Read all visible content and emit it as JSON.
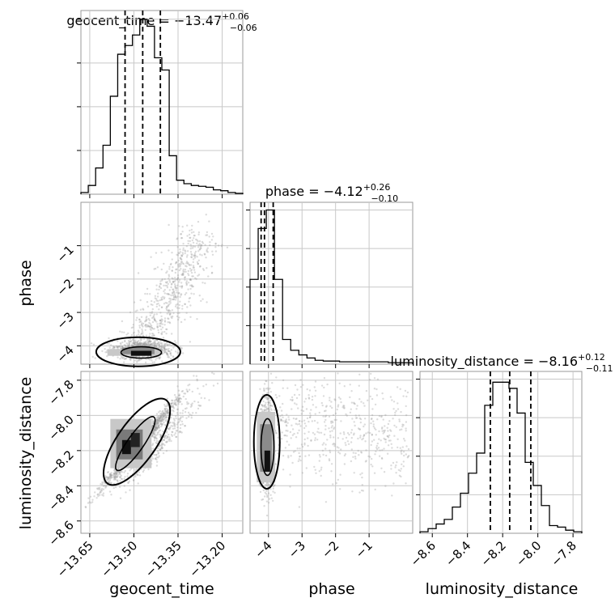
{
  "chart_data": {
    "type": "corner",
    "parameters": [
      "geocent_time",
      "phase",
      "luminosity_distance"
    ],
    "grid": true,
    "diagonal": [
      {
        "parameter": "geocent_time",
        "title": {
          "name": "geocent_time",
          "median": "−13.47",
          "plus": "+0.06",
          "minus": "−0.06"
        },
        "range": [
          -13.68,
          -13.13
        ],
        "quantiles": [
          -13.53,
          -13.47,
          -13.41
        ],
        "bin_heights": [
          0.01,
          0.05,
          0.15,
          0.28,
          0.56,
          0.8,
          0.85,
          0.91,
          1.0,
          0.96,
          0.78,
          0.71,
          0.22,
          0.08,
          0.06,
          0.05,
          0.045,
          0.04,
          0.025,
          0.02,
          0.01,
          0.005
        ]
      },
      {
        "parameter": "phase",
        "title": {
          "name": "phase",
          "median": "−4.12",
          "plus": "+0.26",
          "minus": "−0.10"
        },
        "range": [
          -4.55,
          0.3
        ],
        "quantiles": [
          -4.22,
          -4.12,
          -3.86
        ],
        "bin_heights": [
          0.55,
          0.88,
          1.0,
          0.55,
          0.16,
          0.09,
          0.06,
          0.04,
          0.025,
          0.02,
          0.02,
          0.015,
          0.015,
          0.015,
          0.015,
          0.015,
          0.015,
          0.01,
          0.01,
          0.01
        ]
      },
      {
        "parameter": "luminosity_distance",
        "title": {
          "name": "luminosity_distance",
          "median": "−8.16",
          "plus": "+0.12",
          "minus": "−0.11"
        },
        "range": [
          -8.67,
          -7.75
        ],
        "quantiles": [
          -8.27,
          -8.16,
          -8.04
        ],
        "bin_heights": [
          0.01,
          0.03,
          0.06,
          0.09,
          0.17,
          0.26,
          0.39,
          0.52,
          0.83,
          0.98,
          0.98,
          0.94,
          0.78,
          0.46,
          0.31,
          0.18,
          0.05,
          0.04,
          0.02,
          0.01
        ]
      }
    ],
    "x_ticks": {
      "geocent_time": [
        "−13.65",
        "−13.50",
        "−13.35",
        "−13.20"
      ],
      "phase": [
        "−4",
        "−3",
        "−2",
        "−1"
      ],
      "luminosity_distance": [
        "−8.6",
        "−8.4",
        "−8.2",
        "−8.0",
        "−7.8"
      ]
    },
    "y_ticks": {
      "phase": [
        "−4",
        "−3",
        "−2",
        "−1"
      ],
      "luminosity_distance": [
        "−8.6",
        "−8.4",
        "−8.2",
        "−8.0",
        "−7.8"
      ]
    },
    "tick_values": {
      "geocent_time": [
        -13.65,
        -13.5,
        -13.35,
        -13.2
      ],
      "phase": [
        -4,
        -3,
        -2,
        -1
      ],
      "luminosity_distance": [
        -8.6,
        -8.4,
        -8.2,
        -8.0,
        -7.8
      ]
    },
    "x_labels": [
      "geocent_time",
      "phase",
      "luminosity_distance"
    ],
    "y_labels": [
      "phase",
      "luminosity_distance"
    ],
    "scatter_panels": [
      {
        "x": "geocent_time",
        "y": "phase",
        "density_center": [
          -13.47,
          -4.15
        ],
        "spread": [
          0.05,
          0.08
        ],
        "tail_to": [
          -13.25,
          -0.9
        ]
      },
      {
        "x": "geocent_time",
        "y": "luminosity_distance",
        "density_center": [
          -13.5,
          -8.18
        ],
        "spread": [
          0.05,
          0.1
        ],
        "correlation": 0.85
      },
      {
        "x": "phase",
        "y": "luminosity_distance",
        "density_center": [
          -4.05,
          -8.18
        ],
        "spread": [
          0.1,
          0.12
        ],
        "tail_to": [
          0.1,
          -8.1
        ]
      }
    ]
  }
}
